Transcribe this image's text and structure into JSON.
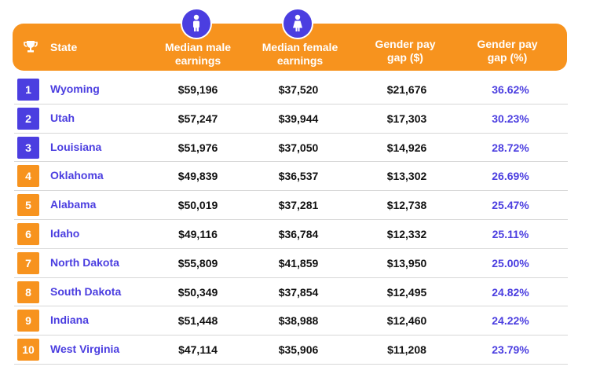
{
  "header": {
    "state": "State",
    "median_male": "Median male earnings",
    "median_female": "Median female earnings",
    "gender_pay_gap_dollars": "Gender pay gap ($)",
    "gender_pay_gap_percent": "Gender pay gap (%)",
    "trophy_icon": "trophy-icon",
    "male_icon": "male-person-icon",
    "female_icon": "female-person-icon"
  },
  "colors": {
    "orange": "#f7931e",
    "purple": "#4b3ee0"
  },
  "rows": [
    {
      "rank": "1",
      "state": "Wyoming",
      "male": "$59,196",
      "female": "$37,520",
      "gap": "$21,676",
      "pct": "36.62%",
      "badge": "blue"
    },
    {
      "rank": "2",
      "state": "Utah",
      "male": "$57,247",
      "female": "$39,944",
      "gap": "$17,303",
      "pct": "30.23%",
      "badge": "blue"
    },
    {
      "rank": "3",
      "state": "Louisiana",
      "male": "$51,976",
      "female": "$37,050",
      "gap": "$14,926",
      "pct": "28.72%",
      "badge": "blue"
    },
    {
      "rank": "4",
      "state": "Oklahoma",
      "male": "$49,839",
      "female": "$36,537",
      "gap": "$13,302",
      "pct": "26.69%",
      "badge": "orange"
    },
    {
      "rank": "5",
      "state": "Alabama",
      "male": "$50,019",
      "female": "$37,281",
      "gap": "$12,738",
      "pct": "25.47%",
      "badge": "orange"
    },
    {
      "rank": "6",
      "state": "Idaho",
      "male": "$49,116",
      "female": "$36,784",
      "gap": "$12,332",
      "pct": "25.11%",
      "badge": "orange"
    },
    {
      "rank": "7",
      "state": "North Dakota",
      "male": "$55,809",
      "female": "$41,859",
      "gap": "$13,950",
      "pct": "25.00%",
      "badge": "orange"
    },
    {
      "rank": "8",
      "state": "South Dakota",
      "male": "$50,349",
      "female": "$37,854",
      "gap": "$12,495",
      "pct": "24.82%",
      "badge": "orange"
    },
    {
      "rank": "9",
      "state": "Indiana",
      "male": "$51,448",
      "female": "$38,988",
      "gap": "$12,460",
      "pct": "24.22%",
      "badge": "orange"
    },
    {
      "rank": "10",
      "state": "West Virginia",
      "male": "$47,114",
      "female": "$35,906",
      "gap": "$11,208",
      "pct": "23.79%",
      "badge": "orange"
    }
  ]
}
